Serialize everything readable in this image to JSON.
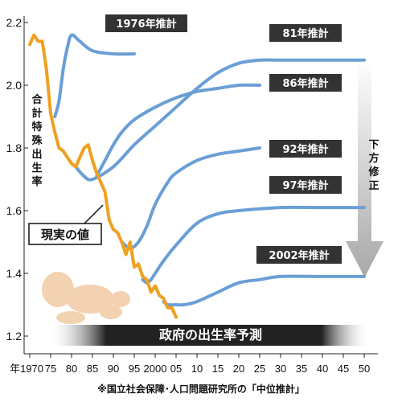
{
  "chart_data": {
    "type": "line",
    "ylabel": "合計特殊出生率",
    "ylim": [
      1.2,
      2.2
    ],
    "yticks": [
      "2.2",
      "2.0",
      "1.8",
      "1.6",
      "1.4",
      "1.2"
    ],
    "xlim": [
      1970,
      2050
    ],
    "xticks": [
      "年1970",
      "75",
      "80",
      "85",
      "90",
      "95",
      "2000",
      "05",
      "10",
      "15",
      "20",
      "25",
      "30",
      "35",
      "40",
      "45",
      "50"
    ],
    "banner": "政府の出生率予測",
    "revision_label": "下方修正",
    "footnote": "※国立社会保障･人口問題研究所の「中位推計」",
    "colors": {
      "actual": "#f0a020",
      "projection": "#6a9fd6",
      "label_bg": "#333333",
      "arrow": "#aaaaaa"
    },
    "actual": {
      "name": "現実の値",
      "x": [
        1970,
        1971,
        1972,
        1973,
        1974,
        1975,
        1976,
        1977,
        1978,
        1979,
        1980,
        1981,
        1982,
        1983,
        1984,
        1985,
        1986,
        1987,
        1988,
        1989,
        1990,
        1991,
        1992,
        1993,
        1994,
        1995,
        1996,
        1997,
        1998,
        1999,
        2000,
        2001,
        2002,
        2003,
        2004,
        2005
      ],
      "y": [
        2.13,
        2.16,
        2.14,
        2.14,
        2.05,
        1.91,
        1.85,
        1.8,
        1.79,
        1.77,
        1.75,
        1.74,
        1.77,
        1.8,
        1.81,
        1.76,
        1.72,
        1.69,
        1.66,
        1.57,
        1.54,
        1.53,
        1.5,
        1.46,
        1.5,
        1.42,
        1.43,
        1.39,
        1.38,
        1.34,
        1.36,
        1.33,
        1.32,
        1.29,
        1.29,
        1.26
      ]
    },
    "series": [
      {
        "name": "1976年推計",
        "x": [
          1976,
          1977,
          1978,
          1979,
          1980,
          1982,
          1985,
          1990,
          1995
        ],
        "y": [
          1.9,
          1.95,
          2.05,
          2.12,
          2.16,
          2.14,
          2.11,
          2.1,
          2.1
        ]
      },
      {
        "name": "81年推計",
        "x": [
          1981,
          1983,
          1985,
          1990,
          1995,
          2000,
          2005,
          2010,
          2015,
          2020,
          2025,
          2030,
          2040,
          2050
        ],
        "y": [
          1.74,
          1.71,
          1.7,
          1.74,
          1.81,
          1.87,
          1.93,
          1.99,
          2.04,
          2.07,
          2.08,
          2.08,
          2.08,
          2.08
        ]
      },
      {
        "name": "86年推計",
        "x": [
          1986,
          1988,
          1990,
          1992,
          1995,
          2000,
          2005,
          2010,
          2015,
          2020,
          2025
        ],
        "y": [
          1.71,
          1.76,
          1.81,
          1.85,
          1.89,
          1.93,
          1.96,
          1.98,
          1.99,
          2.0,
          2.0
        ]
      },
      {
        "name": "92年推計",
        "x": [
          1992,
          1994,
          1996,
          1998,
          2000,
          2003,
          2005,
          2010,
          2015,
          2020,
          2025
        ],
        "y": [
          1.5,
          1.48,
          1.5,
          1.55,
          1.62,
          1.69,
          1.72,
          1.76,
          1.78,
          1.79,
          1.8
        ]
      },
      {
        "name": "97年推計",
        "x": [
          1997,
          1998,
          1999,
          2000,
          2002,
          2005,
          2010,
          2015,
          2020,
          2030,
          2040,
          2050
        ],
        "y": [
          1.38,
          1.37,
          1.38,
          1.4,
          1.44,
          1.49,
          1.56,
          1.59,
          1.6,
          1.61,
          1.61,
          1.61
        ]
      },
      {
        "name": "2002年推計",
        "x": [
          2002,
          2003,
          2005,
          2007,
          2010,
          2015,
          2020,
          2025,
          2030,
          2040,
          2050
        ],
        "y": [
          1.31,
          1.3,
          1.3,
          1.3,
          1.31,
          1.34,
          1.37,
          1.38,
          1.39,
          1.39,
          1.39
        ]
      }
    ]
  }
}
